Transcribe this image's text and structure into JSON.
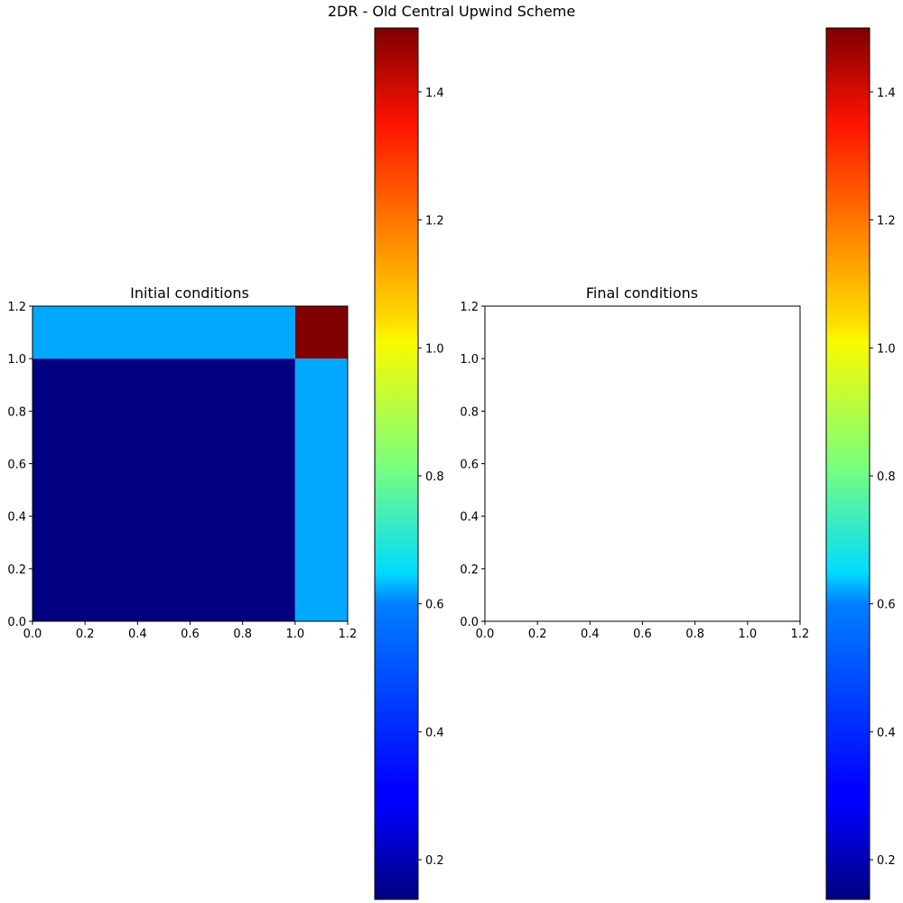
{
  "figure": {
    "suptitle": "2DR - Old Central Upwind Scheme"
  },
  "chart_data": [
    {
      "type": "heatmap",
      "title": "Initial conditions",
      "xlim": [
        0.0,
        1.2
      ],
      "ylim": [
        0.0,
        1.2
      ],
      "xticks": [
        "0.0",
        "0.2",
        "0.4",
        "0.6",
        "0.8",
        "1.0",
        "1.2"
      ],
      "yticks": [
        "0.0",
        "0.2",
        "0.4",
        "0.6",
        "0.8",
        "1.0",
        "1.2"
      ],
      "regions": [
        {
          "x": [
            0.0,
            1.0
          ],
          "y": [
            0.0,
            1.0
          ],
          "value": 0.138
        },
        {
          "x": [
            1.0,
            1.2
          ],
          "y": [
            0.0,
            1.0
          ],
          "value": 0.5323
        },
        {
          "x": [
            0.0,
            1.0
          ],
          "y": [
            1.0,
            1.2
          ],
          "value": 0.5323
        },
        {
          "x": [
            1.0,
            1.2
          ],
          "y": [
            1.0,
            1.2
          ],
          "value": 1.5
        }
      ],
      "colorbar": {
        "colormap": "jet",
        "range": [
          0.138,
          1.5
        ],
        "ticks": [
          "0.2",
          "0.4",
          "0.6",
          "0.8",
          "1.0",
          "1.2",
          "1.4"
        ]
      }
    },
    {
      "type": "heatmap",
      "title": "Final conditions",
      "xlim": [
        0.0,
        1.2
      ],
      "ylim": [
        0.0,
        1.2
      ],
      "xticks": [
        "0.0",
        "0.2",
        "0.4",
        "0.6",
        "0.8",
        "1.0",
        "1.2"
      ],
      "yticks": [
        "0.0",
        "0.2",
        "0.4",
        "0.6",
        "0.8",
        "1.0",
        "1.2"
      ],
      "regions": [],
      "colorbar": {
        "colormap": "jet",
        "range": [
          0.138,
          1.5
        ],
        "ticks": [
          "0.2",
          "0.4",
          "0.6",
          "0.8",
          "1.0",
          "1.2",
          "1.4"
        ]
      }
    }
  ]
}
